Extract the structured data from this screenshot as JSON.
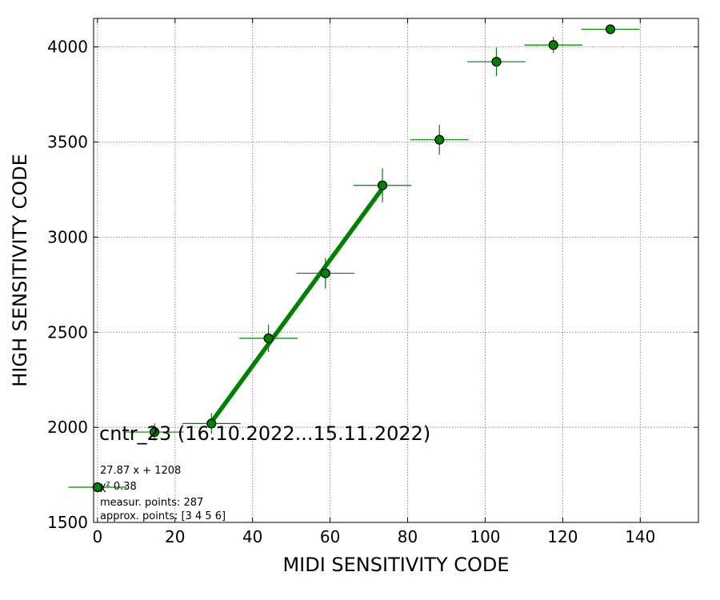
{
  "chart_data": {
    "type": "scatter",
    "xlabel": "MIDI SENSITIVITY CODE",
    "ylabel": "HIGH SENSITIVITY CODE",
    "xlim": [
      -1,
      155
    ],
    "ylim": [
      1500,
      4150
    ],
    "xticks": [
      0,
      20,
      40,
      60,
      80,
      100,
      120,
      140
    ],
    "yticks": [
      1500,
      2000,
      2500,
      3000,
      3500,
      4000
    ],
    "grid": true,
    "colors": {
      "marker": "#008000",
      "marker_edge": "#000000",
      "fit_line": "#008000",
      "grid": "#808080"
    },
    "points": [
      {
        "x": 0,
        "y": 1685,
        "xerr": 7.5,
        "yerr": 0
      },
      {
        "x": 14.7,
        "y": 1975,
        "xerr": 7.5,
        "yerr": 45
      },
      {
        "x": 29.4,
        "y": 2020,
        "xerr": 7.5,
        "yerr": 55
      },
      {
        "x": 44.1,
        "y": 2468,
        "xerr": 7.5,
        "yerr": 72
      },
      {
        "x": 58.8,
        "y": 2810,
        "xerr": 7.5,
        "yerr": 80
      },
      {
        "x": 73.5,
        "y": 3272,
        "xerr": 7.5,
        "yerr": 90
      },
      {
        "x": 88.2,
        "y": 3512,
        "xerr": 7.5,
        "yerr": 78
      },
      {
        "x": 102.9,
        "y": 3922,
        "xerr": 7.5,
        "yerr": 75
      },
      {
        "x": 117.6,
        "y": 4010,
        "xerr": 7.5,
        "yerr": 42
      },
      {
        "x": 132.3,
        "y": 4093,
        "xerr": 7.5,
        "yerr": 0
      }
    ],
    "fit": {
      "slope": 27.87,
      "intercept": 1208,
      "x_range": [
        29.4,
        73.5
      ]
    },
    "annotations": {
      "title": "cntr_23 (16.10.2022...15.11.2022)",
      "equation": "27.87 x + 1208",
      "chi2": "χ² 0.38",
      "measured": "measur. points: 287",
      "approx": "approx. points: [3 4 5 6]"
    }
  }
}
